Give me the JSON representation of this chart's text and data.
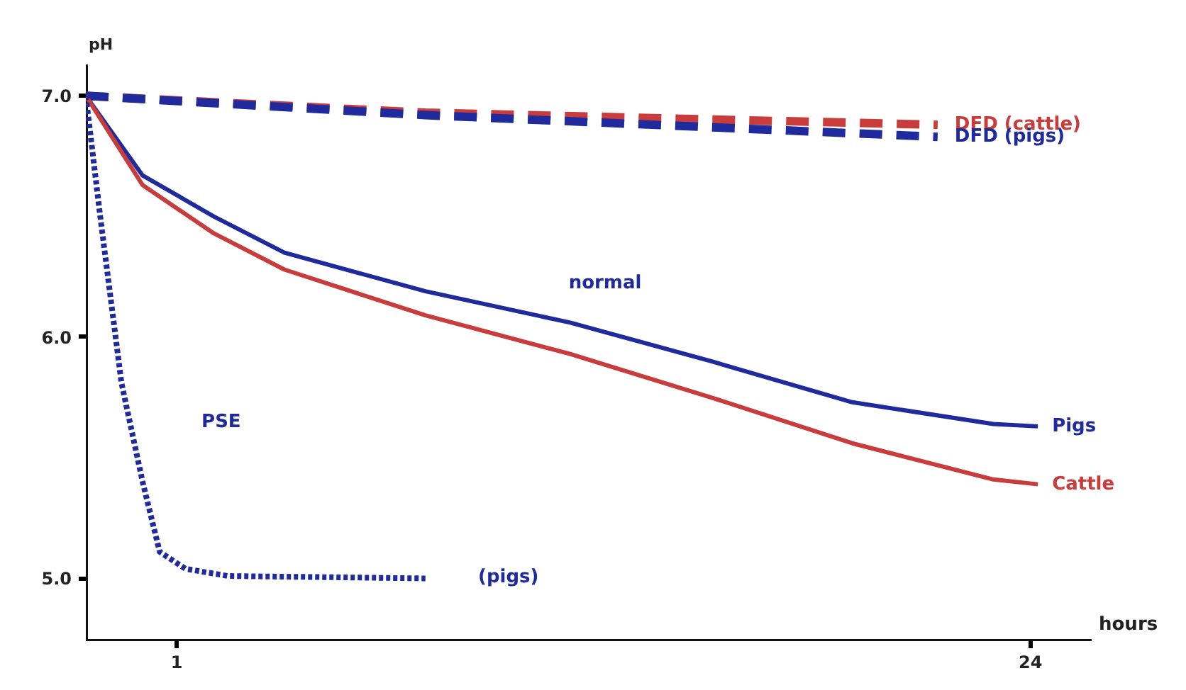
{
  "chart_data": {
    "type": "line",
    "xlabel": "hours",
    "ylabel": "pH",
    "xlim": [
      -1.45,
      25.65
    ],
    "ylim": [
      4.74,
      7.13
    ],
    "xticks": [
      1,
      24
    ],
    "yticks": [
      {
        "value": 5,
        "label": "5.0"
      },
      {
        "value": 6,
        "label": "6.0"
      },
      {
        "value": 7,
        "label": "7.0"
      }
    ],
    "grid": false,
    "marker": "none",
    "series": [
      {
        "name": "DFD (cattle)",
        "color": "#c83c3c",
        "line_style": "dashed",
        "x": [
          -1.45,
          7.7,
          21.5
        ],
        "values": [
          7.0,
          6.93,
          6.88
        ]
      },
      {
        "name": "DFD (pigs)",
        "color": "#1f2a9c",
        "line_style": "dashed",
        "x": [
          -1.45,
          7.7,
          21.5
        ],
        "values": [
          7.0,
          6.92,
          6.83
        ]
      },
      {
        "name": "Pigs",
        "color": "#1f2a9c",
        "line_style": "solid",
        "x": [
          -1.45,
          0.08,
          2.0,
          3.9,
          7.7,
          11.6,
          15.4,
          19.2,
          23.0,
          24.2
        ],
        "values": [
          7.0,
          6.67,
          6.5,
          6.35,
          6.19,
          6.06,
          5.9,
          5.73,
          5.64,
          5.63
        ]
      },
      {
        "name": "Cattle",
        "color": "#c83c3c",
        "line_style": "solid",
        "x": [
          -1.45,
          0.08,
          2.0,
          3.9,
          7.7,
          11.6,
          15.4,
          19.2,
          23.0,
          24.2
        ],
        "values": [
          7.0,
          6.63,
          6.43,
          6.28,
          6.09,
          5.93,
          5.75,
          5.56,
          5.41,
          5.39
        ]
      },
      {
        "color": "#1f2a9c",
        "line_style": "dotted",
        "x": [
          -1.45,
          -1.07,
          -0.49,
          0.08,
          0.54,
          1.23,
          2.38,
          7.7
        ],
        "values": [
          7.0,
          6.51,
          5.81,
          5.4,
          5.11,
          5.04,
          5.01,
          5.0
        ]
      }
    ],
    "annotations": [
      "normal",
      "PSE",
      "(pigs)"
    ]
  }
}
